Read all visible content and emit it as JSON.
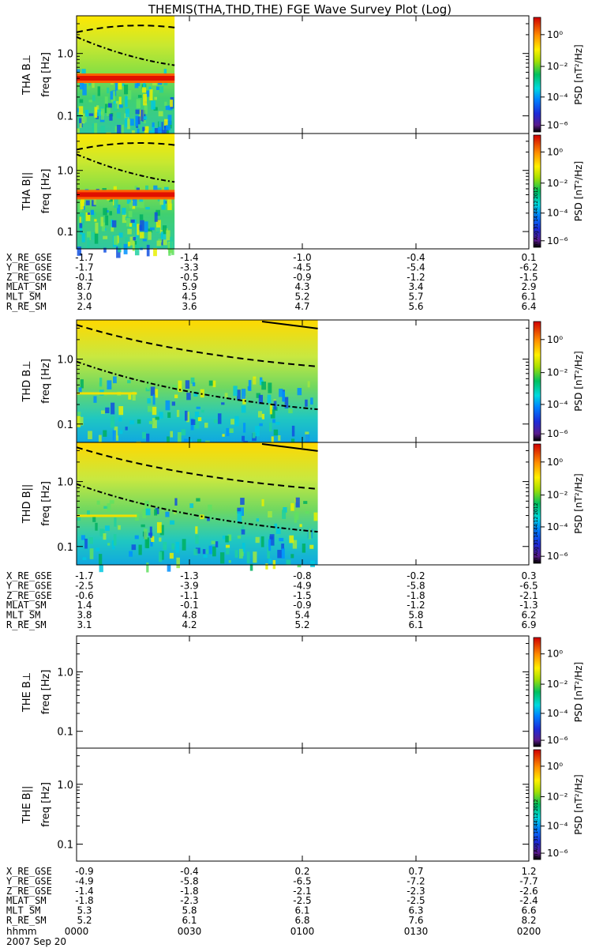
{
  "title": "THEMIS(THA,THD,THE) FGE Wave Survey Plot (Log)",
  "chart_data": {
    "type": "heatmap",
    "title": "THEMIS(THA,THD,THE) FGE Wave Survey Plot (Log)",
    "xlabel": "hhmm",
    "date": "2007 Sep 20",
    "x_ticks": [
      "0000",
      "0030",
      "0100",
      "0130",
      "0200"
    ],
    "y_tick_labels": [
      "1.0",
      "0.1"
    ],
    "y_scale": "log",
    "y_unit_label": "freq [Hz]",
    "colorbar": {
      "label": "PSD [nT²/Hz]",
      "scale": "log",
      "ticks": [
        "10⁰",
        "10⁻²",
        "10⁻⁴",
        "10⁻⁶"
      ]
    },
    "timestamp": "Fri Aug 31 14:44:12 2012",
    "panels": [
      {
        "label": "THA B⊥",
        "data_end": "0026"
      },
      {
        "label": "THA B||",
        "data_end": "0026"
      },
      {
        "label": "THD B⊥",
        "data_end": "0104"
      },
      {
        "label": "THD B||",
        "data_end": "0104"
      },
      {
        "label": "THE B⊥",
        "data_end": ""
      },
      {
        "label": "THE B||",
        "data_end": ""
      }
    ],
    "ephemeris": [
      {
        "probe": "THA",
        "rows": [
          {
            "name": "X_RE_GSE",
            "values": [
              "-1.7",
              "-1.4",
              "-1.0",
              "-0.4",
              "0.1"
            ]
          },
          {
            "name": "Y_RE_GSE",
            "values": [
              "-1.7",
              "-3.3",
              "-4.5",
              "-5.4",
              "-6.2"
            ]
          },
          {
            "name": "Z_RE_GSE",
            "values": [
              "-0.1",
              "-0.5",
              "-0.9",
              "-1.2",
              "-1.5"
            ]
          },
          {
            "name": "MLAT_SM",
            "values": [
              "8.7",
              "5.9",
              "4.3",
              "3.4",
              "2.9"
            ]
          },
          {
            "name": "MLT_SM",
            "values": [
              "3.0",
              "4.5",
              "5.2",
              "5.7",
              "6.1"
            ]
          },
          {
            "name": "R_RE_SM",
            "values": [
              "2.4",
              "3.6",
              "4.7",
              "5.6",
              "6.4"
            ]
          }
        ]
      },
      {
        "probe": "THD",
        "rows": [
          {
            "name": "X_RE_GSE",
            "values": [
              "-1.7",
              "-1.3",
              "-0.8",
              "-0.2",
              "0.3"
            ]
          },
          {
            "name": "Y_RE_GSE",
            "values": [
              "-2.5",
              "-3.9",
              "-4.9",
              "-5.8",
              "-6.5"
            ]
          },
          {
            "name": "Z_RE_GSE",
            "values": [
              "-0.6",
              "-1.1",
              "-1.5",
              "-1.8",
              "-2.1"
            ]
          },
          {
            "name": "MLAT_SM",
            "values": [
              "1.4",
              "-0.1",
              "-0.9",
              "-1.2",
              "-1.3"
            ]
          },
          {
            "name": "MLT_SM",
            "values": [
              "3.8",
              "4.8",
              "5.4",
              "5.8",
              "6.2"
            ]
          },
          {
            "name": "R_RE_SM",
            "values": [
              "3.1",
              "4.2",
              "5.2",
              "6.1",
              "6.9"
            ]
          }
        ]
      },
      {
        "probe": "THE",
        "rows": [
          {
            "name": "X_RE_GSE",
            "values": [
              "-0.9",
              "-0.4",
              "0.2",
              "0.7",
              "1.2"
            ]
          },
          {
            "name": "Y_RE_GSE",
            "values": [
              "-4.9",
              "-5.8",
              "-6.5",
              "-7.2",
              "-7.7"
            ]
          },
          {
            "name": "Z_RE_GSE",
            "values": [
              "-1.4",
              "-1.8",
              "-2.1",
              "-2.3",
              "-2.6"
            ]
          },
          {
            "name": "MLAT_SM",
            "values": [
              "-1.8",
              "-2.3",
              "-2.5",
              "-2.5",
              "-2.4"
            ]
          },
          {
            "name": "MLT_SM",
            "values": [
              "5.3",
              "5.8",
              "6.1",
              "6.3",
              "6.6"
            ]
          },
          {
            "name": "R_RE_SM",
            "values": [
              "5.2",
              "6.1",
              "6.8",
              "7.6",
              "8.2"
            ]
          }
        ]
      }
    ]
  }
}
